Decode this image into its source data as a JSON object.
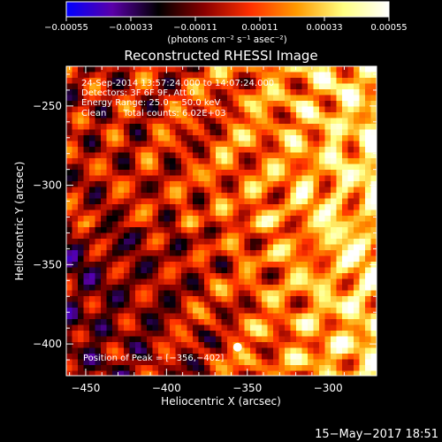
{
  "chart_data": {
    "type": "heatmap",
    "title": "Reconstructed RHESSI Image",
    "xlabel": "Heliocentric X (arcsec)",
    "ylabel": "Heliocentric Y (arcsec)",
    "xlim": [
      -462,
      -270
    ],
    "ylim": [
      -420,
      -225
    ],
    "x_ticks": [
      -450,
      -400,
      -350,
      -300
    ],
    "x_tick_labels": [
      "−450",
      "−400",
      "−350",
      "−300"
    ],
    "y_ticks": [
      -400,
      -350,
      -300,
      -250
    ],
    "y_tick_labels": [
      "−400",
      "−350",
      "−300",
      "−250"
    ],
    "colorbar": {
      "range": [
        -0.00055,
        0.00055
      ],
      "ticks": [
        -0.00055,
        -0.00033,
        -0.00011,
        0.00011,
        0.00033,
        0.00055
      ],
      "tick_labels": [
        "−0.00055",
        "−0.00033",
        "−0.00011",
        "0.00011",
        "0.00033",
        "0.00055"
      ],
      "units": "(photons cm⁻² s⁻¹ asec⁻²)",
      "stops": [
        "#0000ff",
        "#5a00a8",
        "#000000",
        "#8a0000",
        "#ff3000",
        "#ff9a00",
        "#ffff80",
        "#ffffff"
      ]
    },
    "annotations": [
      "24-Sep-2014 13:57:24.000 to 14:07:24.000",
      "Detectors: 3F 6F 9F, Att 0",
      "Energy Range: 25.0 − 50.0 keV",
      "Clean      Total counts: 6.02E+03"
    ],
    "peak_label": "Position of Peak = [−356,−402]",
    "peak": [
      -356,
      -402
    ],
    "grid": false
  },
  "footer": {
    "timestamp": "15−May−2017 18:51"
  }
}
